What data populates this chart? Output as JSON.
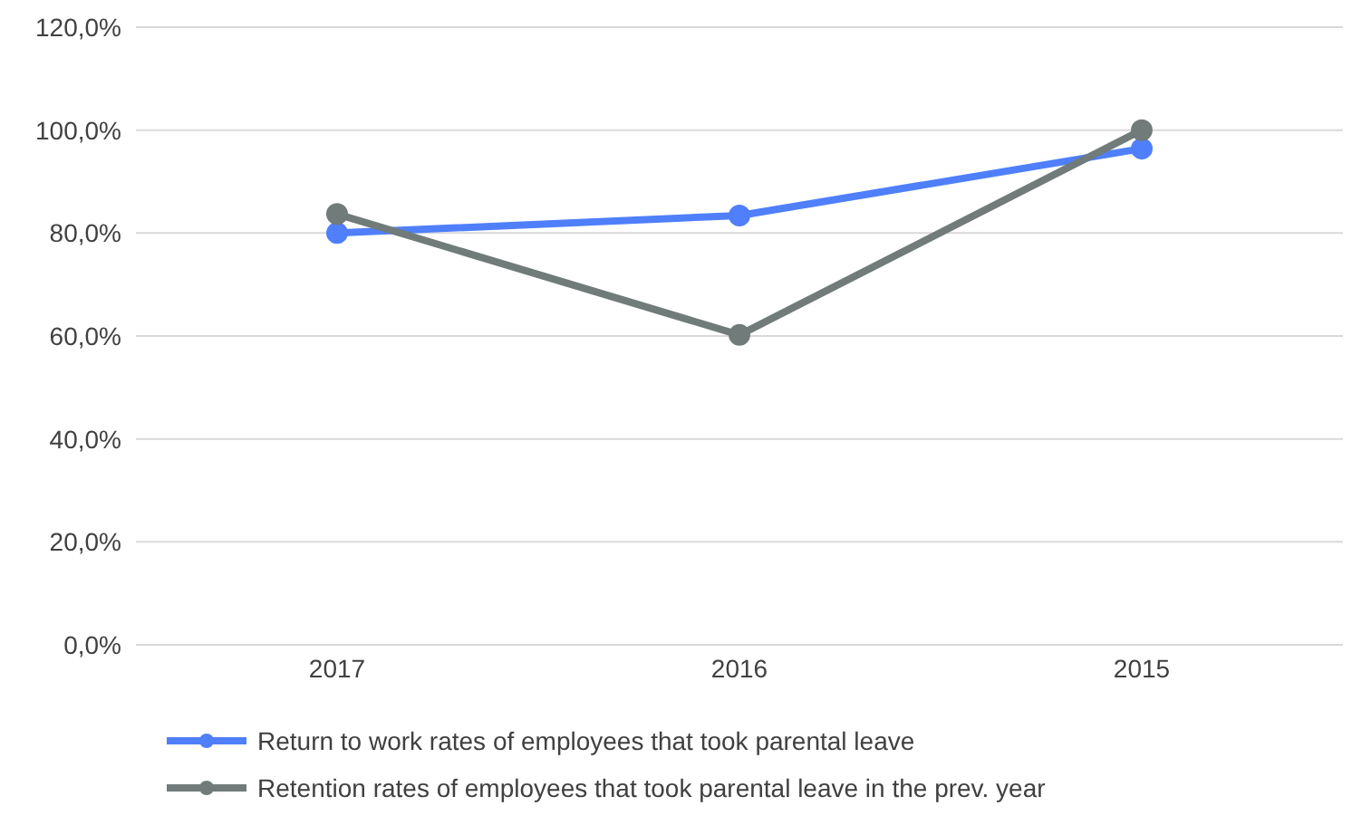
{
  "chart_data": {
    "type": "line",
    "categories": [
      "2017",
      "2016",
      "2015"
    ],
    "series": [
      {
        "name": "Return to work rates of employees that took parental leave",
        "color": "#4f7ffa",
        "values": [
          80.0,
          83.4,
          96.4
        ]
      },
      {
        "name": "Retention rates of employees that took parental leave in the prev. year",
        "color": "#707b7a",
        "values": [
          83.7,
          60.2,
          100.0
        ]
      }
    ],
    "ylim": [
      0,
      120
    ],
    "yticks": [
      {
        "value": 0,
        "label": "0,0%"
      },
      {
        "value": 20,
        "label": "20,0%"
      },
      {
        "value": 40,
        "label": "40,0%"
      },
      {
        "value": 60,
        "label": "60,0%"
      },
      {
        "value": 80,
        "label": "80,0%"
      },
      {
        "value": 100,
        "label": "100,0%"
      },
      {
        "value": 120,
        "label": "120,0%"
      }
    ],
    "grid": "y",
    "legend": "bottom",
    "marker": "circle",
    "line_style": "solid"
  }
}
